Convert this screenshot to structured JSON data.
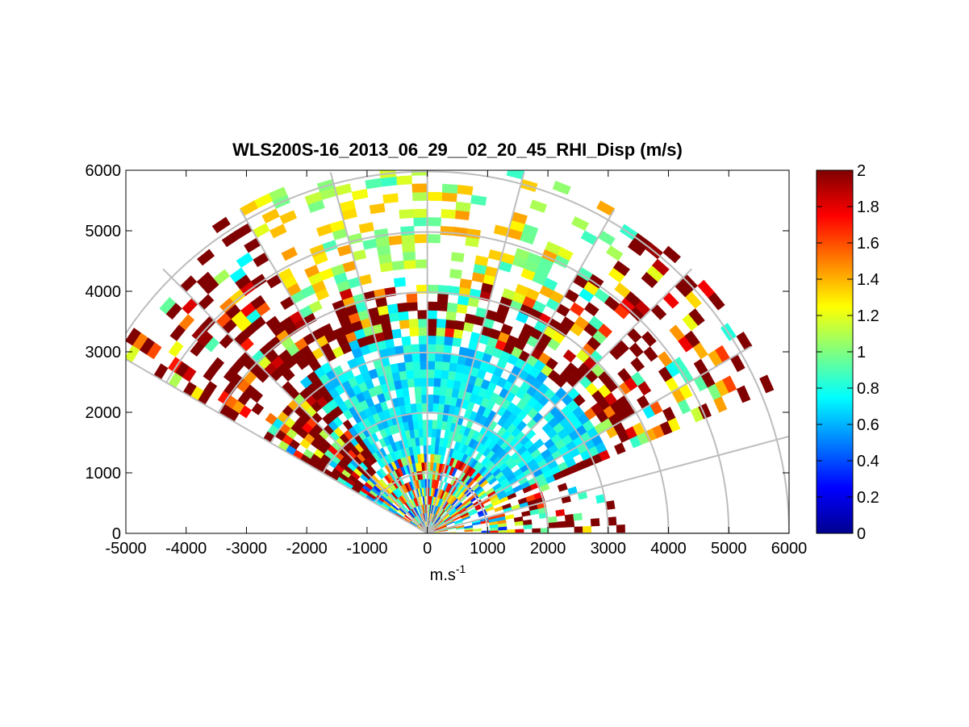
{
  "chart_data": {
    "type": "heatmap",
    "title": "WLS200S-16_2013_06_29__02_20_45_RHI_Disp (m/s)",
    "xlabel": "m.s",
    "xlabel_superscript": "-1",
    "ylabel": "",
    "xlim": [
      -5000,
      6000
    ],
    "ylim": [
      0,
      6000
    ],
    "x_ticks": [
      "-5000",
      "-4000",
      "-3000",
      "-2000",
      "-1000",
      "0",
      "1000",
      "2000",
      "3000",
      "4000",
      "5000",
      "6000"
    ],
    "y_ticks": [
      "0",
      "1000",
      "2000",
      "3000",
      "4000",
      "5000",
      "6000"
    ],
    "grid": "polar",
    "scan_sector_deg": [
      0,
      150
    ],
    "colorbar": {
      "colormap": "jet",
      "range": [
        0,
        2
      ],
      "ticks": [
        "0",
        "0.2",
        "0.4",
        "0.6",
        "0.8",
        "1",
        "1.2",
        "1.4",
        "1.6",
        "1.8",
        "2"
      ]
    }
  }
}
